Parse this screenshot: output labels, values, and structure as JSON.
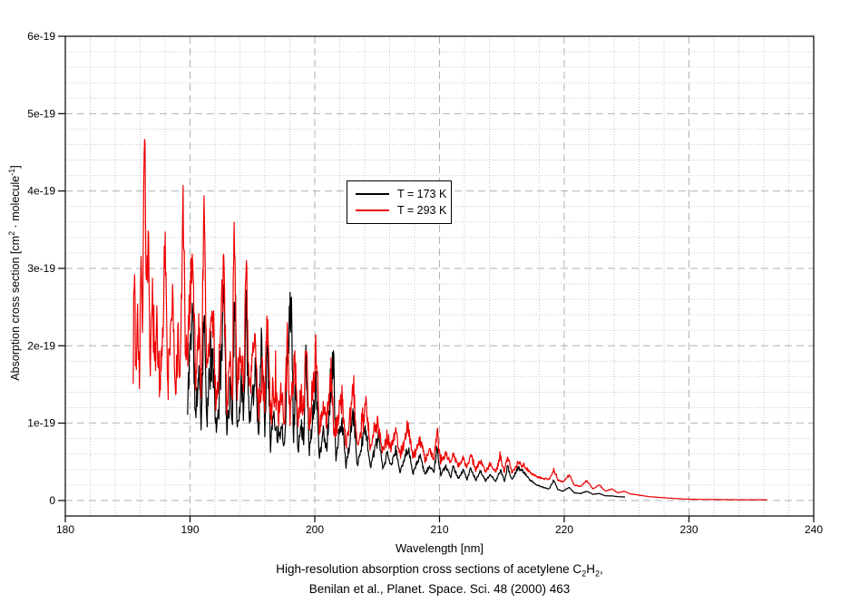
{
  "figure": {
    "background": "#ffffff"
  },
  "axes": {
    "xlabel": "Wavelength [nm]",
    "ylabel_parts": {
      "p1": "Absorption cross section [cm",
      "sup1": "2",
      "p2": " · molecule",
      "sup2": "-1",
      "p3": "]"
    }
  },
  "caption": {
    "line1_parts": {
      "p1": "High-resolution absorption cross sections of acetylene C",
      "sub1": "2",
      "p2": "H",
      "sub2": "2",
      "p3": ","
    },
    "line2": "Benilan et al., Planet. Space. Sci. 48 (2000) 463"
  },
  "chart_data": {
    "type": "line",
    "title": "High-resolution absorption cross sections of acetylene C2H2, Benilan et al., Planet. Space. Sci. 48 (2000) 463",
    "xlabel": "Wavelength [nm]",
    "ylabel": "Absorption cross section [cm^2 · molecule^-1]",
    "value_units": "1e-19 cm^2 / molecule",
    "xlim": [
      180,
      240
    ],
    "ylim_units": [
      -0.2,
      6
    ],
    "x_ticks": [
      180,
      190,
      200,
      210,
      220,
      230,
      240
    ],
    "y_ticks": [
      {
        "value": 0,
        "label": "0"
      },
      {
        "value": 1,
        "label": "1e-19"
      },
      {
        "value": 2,
        "label": "2e-19"
      },
      {
        "value": 3,
        "label": "3e-19"
      },
      {
        "value": 4,
        "label": "4e-19"
      },
      {
        "value": 5,
        "label": "5e-19"
      },
      {
        "value": 6,
        "label": "6e-19"
      }
    ],
    "x_minor_step": 2,
    "y_minor_step": 0.2,
    "grid": {
      "major": "dashed",
      "minor": "dotted",
      "major_color": "#b2b2b2",
      "minor_color": "#c9c9c9"
    },
    "legend": {
      "position": "inside-upper-middle",
      "border": true
    },
    "series": [
      {
        "id": "t173",
        "name": "T = 173 K",
        "color": "#000000",
        "seed": 11,
        "range_nm": [
          189.8,
          224.9
        ],
        "peak_absorption_max_1e19": 2.8,
        "control_points": [
          [
            189.8,
            1.1
          ],
          [
            189.95,
            1.9
          ],
          [
            190.2,
            2.5
          ],
          [
            190.45,
            1.0
          ],
          [
            190.7,
            1.75
          ],
          [
            190.9,
            0.95
          ],
          [
            191.1,
            2.5
          ],
          [
            191.35,
            1.1
          ],
          [
            191.6,
            1.6
          ],
          [
            191.85,
            1.8
          ],
          [
            192.1,
            0.85
          ],
          [
            192.4,
            1.5
          ],
          [
            192.7,
            2.8
          ],
          [
            192.95,
            0.9
          ],
          [
            193.2,
            1.4
          ],
          [
            193.4,
            1.1
          ],
          [
            193.55,
            2.5
          ],
          [
            193.8,
            0.95
          ],
          [
            194.1,
            1.5
          ],
          [
            194.3,
            1.2
          ],
          [
            194.5,
            2.6
          ],
          [
            194.75,
            0.9
          ],
          [
            195.0,
            1.4
          ],
          [
            195.25,
            1.7
          ],
          [
            195.5,
            0.8
          ],
          [
            195.7,
            2.25
          ],
          [
            196.0,
            0.95
          ],
          [
            196.2,
            2.3
          ],
          [
            196.45,
            0.7
          ],
          [
            196.7,
            1.15
          ],
          [
            197.0,
            0.8
          ],
          [
            197.3,
            1.0
          ],
          [
            197.55,
            0.7
          ],
          [
            197.8,
            1.8
          ],
          [
            198.1,
            2.75
          ],
          [
            198.3,
            0.75
          ],
          [
            198.45,
            1.6
          ],
          [
            198.65,
            0.62
          ],
          [
            198.9,
            1.0
          ],
          [
            199.1,
            0.8
          ],
          [
            199.3,
            2.0
          ],
          [
            199.55,
            0.62
          ],
          [
            199.8,
            1.0
          ],
          [
            200.1,
            1.6
          ],
          [
            200.35,
            0.55
          ],
          [
            200.7,
            0.9
          ],
          [
            200.95,
            0.68
          ],
          [
            201.3,
            1.45
          ],
          [
            201.5,
            1.8
          ],
          [
            201.7,
            0.52
          ],
          [
            201.9,
            0.8
          ],
          [
            202.2,
            1.0
          ],
          [
            202.5,
            0.45
          ],
          [
            202.8,
            0.72
          ],
          [
            203.1,
            1.15
          ],
          [
            203.4,
            0.45
          ],
          [
            203.75,
            0.72
          ],
          [
            204.1,
            0.95
          ],
          [
            204.45,
            0.42
          ],
          [
            204.8,
            0.65
          ],
          [
            205.1,
            0.85
          ],
          [
            205.45,
            0.4
          ],
          [
            205.8,
            0.6
          ],
          [
            206.1,
            0.45
          ],
          [
            206.5,
            0.65
          ],
          [
            206.85,
            0.36
          ],
          [
            207.2,
            0.55
          ],
          [
            207.5,
            0.7
          ],
          [
            207.85,
            0.35
          ],
          [
            208.2,
            0.48
          ],
          [
            208.5,
            0.58
          ],
          [
            208.85,
            0.33
          ],
          [
            209.2,
            0.45
          ],
          [
            209.55,
            0.36
          ],
          [
            209.8,
            0.68
          ],
          [
            210.1,
            0.32
          ],
          [
            210.5,
            0.45
          ],
          [
            210.9,
            0.3
          ],
          [
            211.1,
            0.44
          ],
          [
            211.5,
            0.28
          ],
          [
            211.9,
            0.4
          ],
          [
            212.2,
            0.27
          ],
          [
            212.5,
            0.42
          ],
          [
            212.9,
            0.26
          ],
          [
            213.3,
            0.38
          ],
          [
            213.7,
            0.25
          ],
          [
            214.1,
            0.34
          ],
          [
            214.5,
            0.24
          ],
          [
            214.9,
            0.4
          ],
          [
            215.2,
            0.24
          ],
          [
            215.45,
            0.44
          ],
          [
            215.8,
            0.27
          ],
          [
            216.3,
            0.42
          ],
          [
            216.8,
            0.36
          ],
          [
            217.3,
            0.26
          ],
          [
            217.8,
            0.2
          ],
          [
            218.3,
            0.17
          ],
          [
            218.8,
            0.15
          ],
          [
            219.15,
            0.26
          ],
          [
            219.5,
            0.14
          ],
          [
            219.9,
            0.12
          ],
          [
            220.4,
            0.17
          ],
          [
            220.8,
            0.1
          ],
          [
            221.3,
            0.09
          ],
          [
            221.8,
            0.12
          ],
          [
            222.3,
            0.08
          ],
          [
            222.8,
            0.09
          ],
          [
            223.3,
            0.06
          ],
          [
            223.8,
            0.06
          ],
          [
            224.3,
            0.05
          ],
          [
            224.9,
            0.045
          ]
        ]
      },
      {
        "id": "t293",
        "name": "T = 293 K",
        "color": "#ee0000",
        "seed": 7,
        "range_nm": [
          185.45,
          236.3
        ],
        "peak_absorption_max_1e19": 5.15,
        "control_points": [
          [
            185.45,
            1.9
          ],
          [
            185.55,
            3.1
          ],
          [
            185.65,
            1.6
          ],
          [
            185.8,
            2.6
          ],
          [
            185.95,
            1.5
          ],
          [
            186.1,
            3.3
          ],
          [
            186.2,
            2.2
          ],
          [
            186.35,
            5.15
          ],
          [
            186.5,
            2.6
          ],
          [
            186.65,
            3.3
          ],
          [
            186.8,
            1.55
          ],
          [
            187.0,
            2.75
          ],
          [
            187.2,
            1.5
          ],
          [
            187.35,
            2.3
          ],
          [
            187.55,
            1.25
          ],
          [
            187.8,
            2.3
          ],
          [
            188.0,
            3.45
          ],
          [
            188.2,
            1.4
          ],
          [
            188.4,
            2.1
          ],
          [
            188.6,
            2.6
          ],
          [
            188.8,
            1.35
          ],
          [
            189.05,
            2.0
          ],
          [
            189.2,
            1.45
          ],
          [
            189.45,
            3.95
          ],
          [
            189.65,
            1.6
          ],
          [
            189.9,
            2.3
          ],
          [
            190.2,
            3.3
          ],
          [
            190.45,
            1.5
          ],
          [
            190.7,
            2.3
          ],
          [
            190.9,
            1.4
          ],
          [
            191.1,
            3.75
          ],
          [
            191.35,
            1.7
          ],
          [
            191.6,
            2.2
          ],
          [
            191.85,
            2.3
          ],
          [
            192.1,
            1.25
          ],
          [
            192.4,
            1.9
          ],
          [
            192.7,
            3.05
          ],
          [
            192.95,
            1.3
          ],
          [
            193.2,
            1.8
          ],
          [
            193.4,
            1.5
          ],
          [
            193.55,
            3.7
          ],
          [
            193.8,
            1.35
          ],
          [
            194.1,
            1.9
          ],
          [
            194.3,
            1.6
          ],
          [
            194.5,
            2.9
          ],
          [
            194.75,
            1.3
          ],
          [
            195.0,
            1.8
          ],
          [
            195.25,
            2.1
          ],
          [
            195.5,
            1.15
          ],
          [
            195.8,
            1.7
          ],
          [
            196.0,
            1.3
          ],
          [
            196.2,
            2.4
          ],
          [
            196.45,
            1.05
          ],
          [
            196.7,
            1.5
          ],
          [
            197.0,
            1.15
          ],
          [
            197.3,
            1.35
          ],
          [
            197.55,
            1.0
          ],
          [
            197.8,
            2.1
          ],
          [
            198.05,
            1.05
          ],
          [
            198.4,
            2.0
          ],
          [
            198.65,
            0.95
          ],
          [
            198.9,
            1.3
          ],
          [
            199.1,
            1.1
          ],
          [
            199.3,
            2.15
          ],
          [
            199.55,
            0.95
          ],
          [
            199.8,
            1.3
          ],
          [
            200.1,
            2.0
          ],
          [
            200.35,
            0.85
          ],
          [
            200.7,
            1.2
          ],
          [
            200.95,
            0.95
          ],
          [
            201.3,
            1.75
          ],
          [
            201.55,
            0.8
          ],
          [
            201.9,
            1.1
          ],
          [
            202.2,
            1.35
          ],
          [
            202.5,
            0.7
          ],
          [
            202.8,
            1.0
          ],
          [
            203.1,
            1.45
          ],
          [
            203.4,
            0.7
          ],
          [
            203.75,
            1.0
          ],
          [
            204.1,
            1.25
          ],
          [
            204.45,
            0.65
          ],
          [
            204.8,
            0.9
          ],
          [
            205.1,
            1.05
          ],
          [
            205.45,
            0.62
          ],
          [
            205.8,
            0.85
          ],
          [
            206.1,
            0.68
          ],
          [
            206.5,
            0.9
          ],
          [
            206.85,
            0.58
          ],
          [
            207.2,
            0.8
          ],
          [
            207.5,
            0.95
          ],
          [
            207.85,
            0.55
          ],
          [
            208.2,
            0.7
          ],
          [
            208.5,
            0.8
          ],
          [
            208.85,
            0.52
          ],
          [
            209.2,
            0.65
          ],
          [
            209.55,
            0.55
          ],
          [
            209.8,
            0.9
          ],
          [
            210.1,
            0.5
          ],
          [
            210.5,
            0.62
          ],
          [
            210.9,
            0.48
          ],
          [
            211.1,
            0.6
          ],
          [
            211.5,
            0.44
          ],
          [
            211.9,
            0.55
          ],
          [
            212.2,
            0.42
          ],
          [
            212.5,
            0.58
          ],
          [
            212.9,
            0.4
          ],
          [
            213.3,
            0.52
          ],
          [
            213.7,
            0.38
          ],
          [
            214.1,
            0.48
          ],
          [
            214.5,
            0.37
          ],
          [
            214.9,
            0.55
          ],
          [
            215.2,
            0.36
          ],
          [
            215.45,
            0.6
          ],
          [
            215.8,
            0.35
          ],
          [
            216.3,
            0.5
          ],
          [
            216.8,
            0.44
          ],
          [
            217.3,
            0.36
          ],
          [
            217.8,
            0.31
          ],
          [
            218.3,
            0.29
          ],
          [
            218.8,
            0.27
          ],
          [
            219.15,
            0.4
          ],
          [
            219.5,
            0.26
          ],
          [
            219.9,
            0.24
          ],
          [
            220.4,
            0.33
          ],
          [
            220.8,
            0.2
          ],
          [
            221.3,
            0.18
          ],
          [
            221.8,
            0.26
          ],
          [
            222.3,
            0.15
          ],
          [
            222.8,
            0.2
          ],
          [
            223.3,
            0.12
          ],
          [
            223.8,
            0.15
          ],
          [
            224.3,
            0.1
          ],
          [
            224.8,
            0.12
          ],
          [
            225.3,
            0.085
          ],
          [
            226.0,
            0.07
          ],
          [
            226.8,
            0.05
          ],
          [
            227.6,
            0.04
          ],
          [
            228.5,
            0.03
          ],
          [
            229.5,
            0.02
          ],
          [
            230.5,
            0.015
          ],
          [
            232.0,
            0.012
          ],
          [
            234.0,
            0.01
          ],
          [
            236.3,
            0.01
          ]
        ]
      }
    ]
  }
}
